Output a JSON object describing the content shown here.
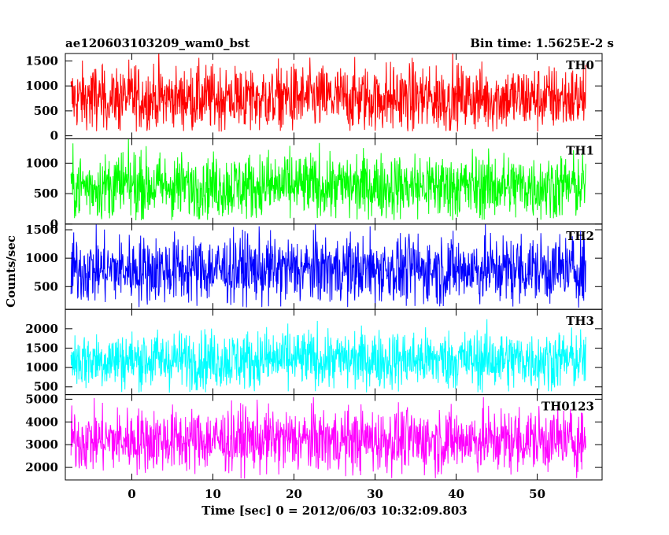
{
  "chart_data": {
    "type": "line",
    "title": "ae120603103209_wam0_bst",
    "subtitle": "Bin time: 1.5625E-2 s",
    "xlabel": "Time [sec] 0 = 2012/06/03 10:32:09.803",
    "ylabel": "Counts/sec",
    "xlim": [
      -8.2,
      58.0
    ],
    "x_ticks": [
      0,
      10,
      20,
      30,
      40,
      50
    ],
    "x_start": -7.5,
    "x_end": 56.0,
    "bin_time": 0.015625,
    "grid": false,
    "panels": [
      {
        "name": "TH0",
        "color": "#ff0000",
        "ylim": [
          -60,
          1650
        ],
        "y_ticks": [
          0,
          500,
          1000,
          1500
        ],
        "series_stats": {
          "mean": 750,
          "noise_sd": 330,
          "min_floor": 80
        }
      },
      {
        "name": "TH1",
        "color": "#00ff00",
        "ylim": [
          0,
          1400
        ],
        "y_ticks": [
          0,
          500,
          1000
        ],
        "series_stats": {
          "mean": 620,
          "noise_sd": 270,
          "min_floor": 60
        }
      },
      {
        "name": "TH2",
        "color": "#0000ff",
        "ylim": [
          100,
          1600
        ],
        "y_ticks": [
          500,
          1000,
          1500
        ],
        "series_stats": {
          "mean": 800,
          "noise_sd": 300,
          "min_floor": 130
        }
      },
      {
        "name": "TH3",
        "color": "#00ffff",
        "ylim": [
          300,
          2500
        ],
        "y_ticks": [
          500,
          1000,
          1500,
          2000
        ],
        "series_stats": {
          "mean": 1200,
          "noise_sd": 380,
          "min_floor": 350
        }
      },
      {
        "name": "TH0123",
        "color": "#ff00ff",
        "ylim": [
          1450,
          5200
        ],
        "y_ticks": [
          2000,
          3000,
          4000,
          5000
        ],
        "series_stats": {
          "mean": 3200,
          "noise_sd": 700,
          "min_floor": 1500
        }
      }
    ]
  }
}
